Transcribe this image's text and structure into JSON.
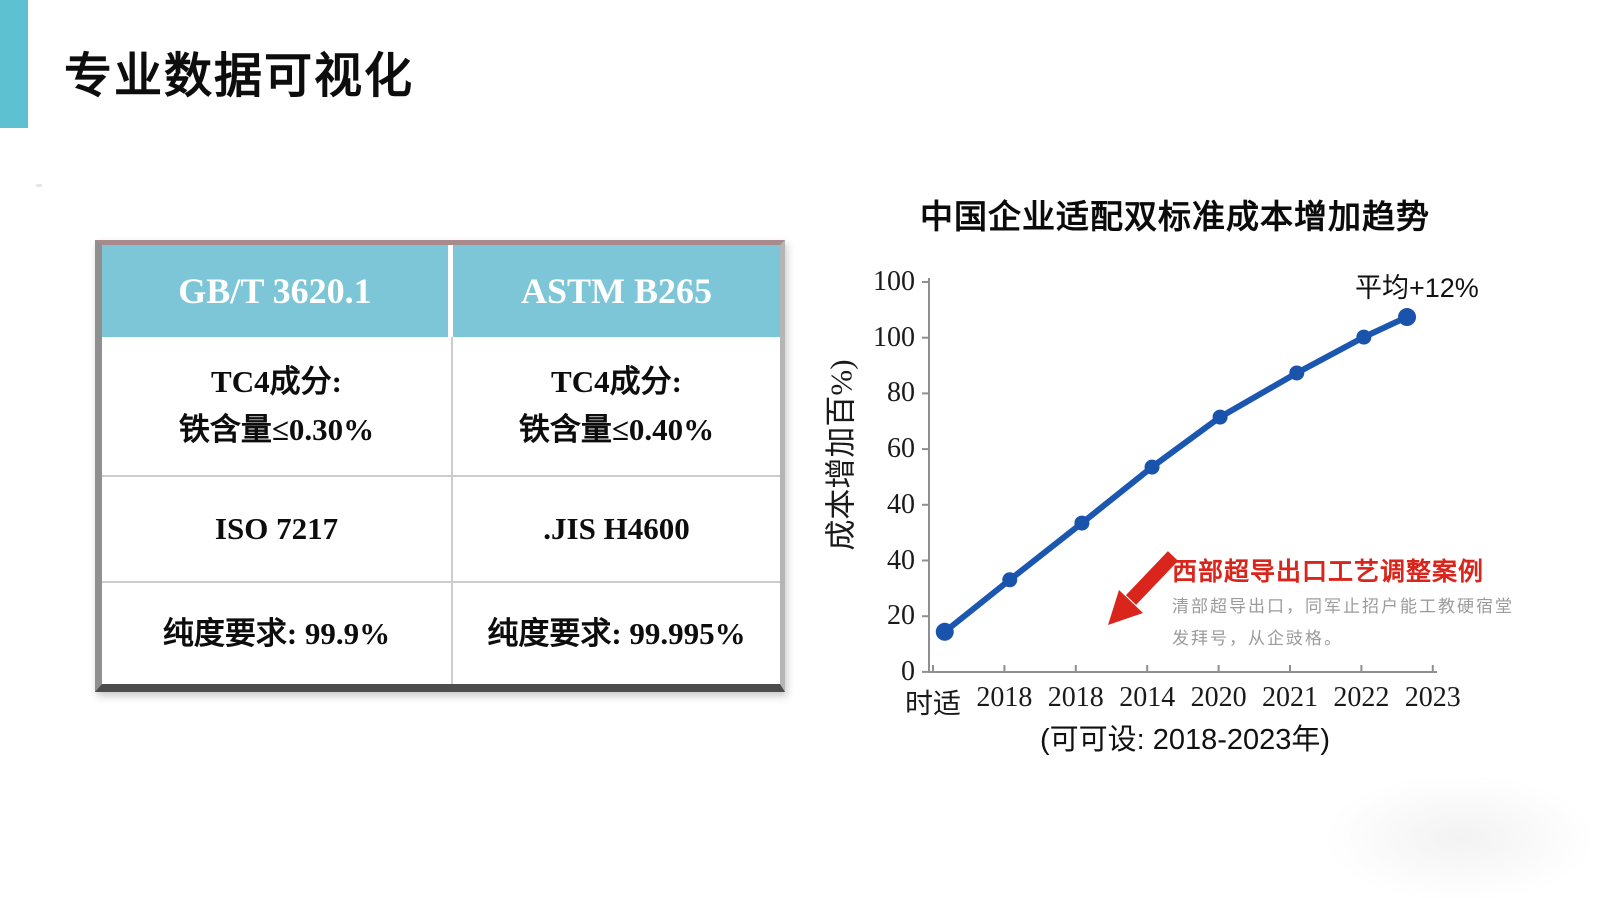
{
  "slide": {
    "title": "专业数据可视化"
  },
  "table": {
    "header": {
      "col1": "GB/T 3620.1",
      "col2": "ASTM B265"
    },
    "row1": {
      "col1_line1": "TC4成分:",
      "col1_line2": "铁含量≤0.30%",
      "col2_line1": "TC4成分:",
      "col2_line2": "铁含量≤0.40%"
    },
    "row2": {
      "col1": "ISO 7217",
      "col2": ".JIS H4600"
    },
    "row3": {
      "col1": "纯度要求: 99.9%",
      "col2": "纯度要求: 99.995%"
    }
  },
  "chart_data": {
    "type": "line",
    "title": "中国企业适配双标准成本增加趋势",
    "ylabel": "成本增加百%)",
    "annotation_average": "平均+12%",
    "caption": "(可可设: 2018-2023年)",
    "y_tick_labels_top_to_bottom": [
      "100",
      "100",
      "80",
      "60",
      "40",
      "40",
      "20",
      "0"
    ],
    "x_tick_labels": [
      "时适",
      "2018",
      "2018",
      "2014",
      "2020",
      "2021",
      "2022",
      "2023"
    ],
    "series": [
      {
        "name": "成本增加(%)",
        "x": [
          "时适",
          "2018",
          "2018",
          "2014",
          "2020",
          "2021",
          "2022",
          "2023"
        ],
        "values_est": [
          17,
          35,
          45,
          55,
          72,
          88,
          100,
          107
        ],
        "point_fractions": [
          {
            "x": 0.031,
            "y": 0.898
          },
          {
            "x": 0.159,
            "y": 0.766
          },
          {
            "x": 0.301,
            "y": 0.622
          },
          {
            "x": 0.439,
            "y": 0.48
          },
          {
            "x": 0.573,
            "y": 0.353
          },
          {
            "x": 0.724,
            "y": 0.241
          },
          {
            "x": 0.856,
            "y": 0.15
          },
          {
            "x": 0.941,
            "y": 0.099
          }
        ]
      }
    ],
    "callout": {
      "title": "西部超导出口工艺调整案例",
      "body_line1": "清部超导出口，同军止招户能工教硬宿堂",
      "body_line2": "发拜号，从企豉格。"
    }
  },
  "colors": {
    "accent_teal": "#5ec1d1",
    "table_header_teal": "#7cc6d8",
    "line_blue": "#1b57b0",
    "point_blue": "#1a53ab",
    "callout_red": "#da251c",
    "axis_gray": "#8f8f8f"
  }
}
